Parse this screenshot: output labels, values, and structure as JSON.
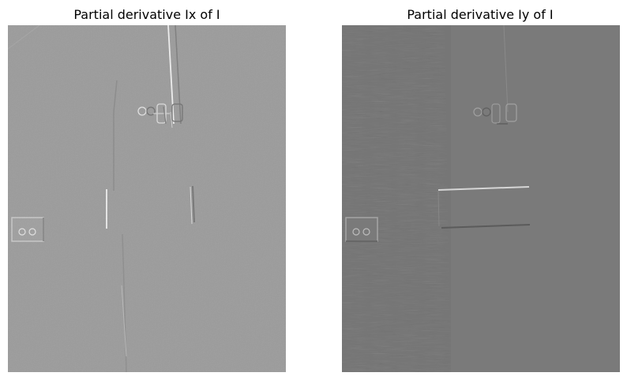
{
  "panels": [
    {
      "title": "Partial derivative Ix of I"
    },
    {
      "title": "Partial derivative Iy of I"
    }
  ]
}
